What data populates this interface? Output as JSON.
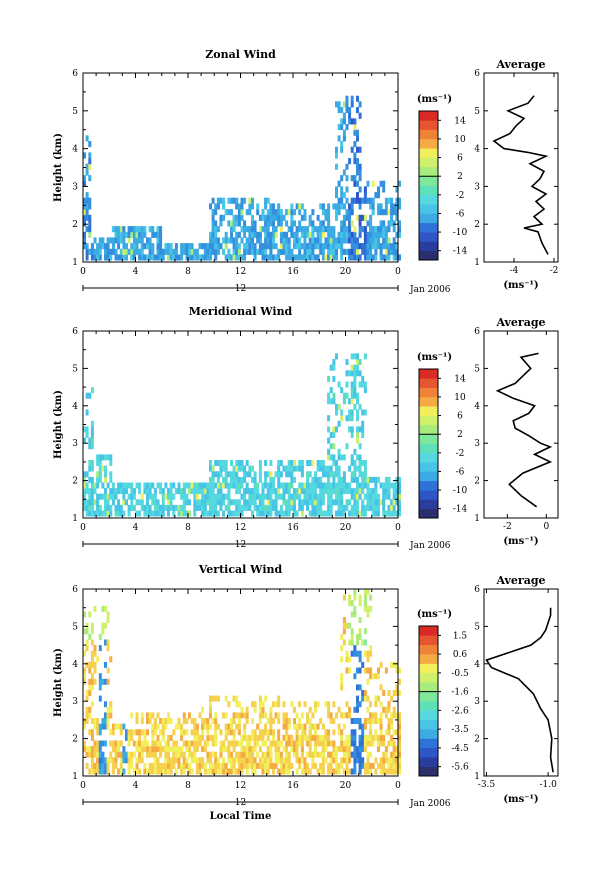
{
  "chart_data": [
    {
      "type": "heatmap",
      "title": "Zonal Wind",
      "ylabel": "Height (km)",
      "xlabel": "",
      "x_ticks": [
        "0",
        "4",
        "8",
        "12",
        "16",
        "20",
        "0"
      ],
      "y_ticks": [
        "1",
        "2",
        "3",
        "4",
        "5",
        "6"
      ],
      "xlim": [
        0,
        24
      ],
      "ylim": [
        1,
        6
      ],
      "day_label": "12",
      "date_label": "Jan 2006",
      "colorbar": {
        "unit": "(ms⁻¹)",
        "ticks": [
          "14",
          "10",
          "6",
          "2",
          "-2",
          "-6",
          "-10",
          "-14"
        ],
        "range": [
          -16,
          16
        ]
      },
      "average": {
        "title": "Average",
        "unit": "(ms⁻¹)",
        "x_ticks": [
          "-4",
          "-2"
        ],
        "y_ticks": [
          "1",
          "2",
          "3",
          "4",
          "5",
          "6"
        ],
        "xlim": [
          -5.5,
          -1.8
        ],
        "profile": [
          [
            1.2,
            -2.3
          ],
          [
            1.5,
            -2.6
          ],
          [
            1.8,
            -2.8
          ],
          [
            1.9,
            -3.5
          ],
          [
            2.0,
            -2.6
          ],
          [
            2.2,
            -3.0
          ],
          [
            2.4,
            -2.5
          ],
          [
            2.6,
            -2.9
          ],
          [
            2.8,
            -2.4
          ],
          [
            3.0,
            -3.1
          ],
          [
            3.2,
            -2.7
          ],
          [
            3.4,
            -2.5
          ],
          [
            3.6,
            -3.2
          ],
          [
            3.8,
            -2.4
          ],
          [
            3.9,
            -3.3
          ],
          [
            4.0,
            -4.5
          ],
          [
            4.2,
            -5.0
          ],
          [
            4.4,
            -4.2
          ],
          [
            4.6,
            -3.9
          ],
          [
            4.8,
            -3.5
          ],
          [
            5.0,
            -4.3
          ],
          [
            5.2,
            -3.3
          ],
          [
            5.4,
            -3.0
          ]
        ]
      }
    },
    {
      "type": "heatmap",
      "title": "Meridional Wind",
      "ylabel": "Height (km)",
      "xlabel": "",
      "x_ticks": [
        "0",
        "4",
        "8",
        "12",
        "16",
        "20",
        "0"
      ],
      "y_ticks": [
        "1",
        "2",
        "3",
        "4",
        "5",
        "6"
      ],
      "xlim": [
        0,
        24
      ],
      "ylim": [
        1,
        6
      ],
      "day_label": "12",
      "date_label": "Jan 2006",
      "colorbar": {
        "unit": "(ms⁻¹)",
        "ticks": [
          "14",
          "10",
          "6",
          "2",
          "-2",
          "-6",
          "-10",
          "-14"
        ],
        "range": [
          -16,
          16
        ]
      },
      "average": {
        "title": "Average",
        "unit": "(ms⁻¹)",
        "x_ticks": [
          "-2",
          "0"
        ],
        "y_ticks": [
          "1",
          "2",
          "3",
          "4",
          "5",
          "6"
        ],
        "xlim": [
          -3.2,
          0.6
        ],
        "profile": [
          [
            1.3,
            -0.5
          ],
          [
            1.6,
            -1.3
          ],
          [
            1.9,
            -1.9
          ],
          [
            2.2,
            -1.2
          ],
          [
            2.5,
            0.2
          ],
          [
            2.7,
            -0.6
          ],
          [
            2.9,
            0.2
          ],
          [
            3.0,
            -0.3
          ],
          [
            3.2,
            -0.9
          ],
          [
            3.4,
            -1.6
          ],
          [
            3.6,
            -1.7
          ],
          [
            3.8,
            -0.9
          ],
          [
            4.0,
            -0.6
          ],
          [
            4.2,
            -1.7
          ],
          [
            4.4,
            -2.5
          ],
          [
            4.6,
            -1.6
          ],
          [
            4.8,
            -1.2
          ],
          [
            5.0,
            -0.8
          ],
          [
            5.3,
            -1.3
          ],
          [
            5.4,
            -0.4
          ]
        ]
      }
    },
    {
      "type": "heatmap",
      "title": "Vertical Wind",
      "ylabel": "Height (km)",
      "xlabel": "Local Time",
      "x_ticks": [
        "0",
        "4",
        "8",
        "12",
        "16",
        "20",
        "0"
      ],
      "y_ticks": [
        "1",
        "2",
        "3",
        "4",
        "5",
        "6"
      ],
      "xlim": [
        0,
        24
      ],
      "ylim": [
        1,
        6
      ],
      "day_label": "12",
      "date_label": "Jan 2006",
      "colorbar": {
        "unit": "(ms⁻¹)",
        "ticks": [
          "1.5",
          "0.6",
          "-0.5",
          "-1.6",
          "-2.6",
          "-3.5",
          "-4.5",
          "-5.6"
        ],
        "range": [
          -6,
          2
        ]
      },
      "average": {
        "title": "Average",
        "unit": "(ms⁻¹)",
        "x_ticks": [
          "-3.5",
          "-1.0"
        ],
        "y_ticks": [
          "1",
          "2",
          "3",
          "4",
          "5",
          "6"
        ],
        "xlim": [
          -3.6,
          -0.6
        ],
        "profile": [
          [
            1.1,
            -0.8
          ],
          [
            1.5,
            -0.9
          ],
          [
            2.0,
            -0.85
          ],
          [
            2.5,
            -1.0
          ],
          [
            2.8,
            -1.3
          ],
          [
            3.2,
            -1.6
          ],
          [
            3.6,
            -2.2
          ],
          [
            3.9,
            -3.3
          ],
          [
            4.1,
            -3.5
          ],
          [
            4.3,
            -2.6
          ],
          [
            4.5,
            -1.7
          ],
          [
            4.7,
            -1.3
          ],
          [
            4.9,
            -1.1
          ],
          [
            5.1,
            -1.0
          ],
          [
            5.3,
            -0.9
          ],
          [
            5.5,
            -0.9
          ]
        ]
      }
    }
  ]
}
